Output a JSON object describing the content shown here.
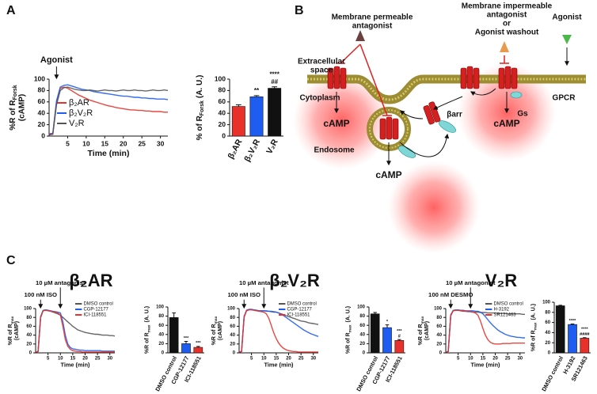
{
  "panel_labels": [
    "A",
    "B",
    "C"
  ],
  "diagram": {
    "permeable_antagonist": [
      "Membrane permeable",
      "antagonist"
    ],
    "impermeable_antagonist": [
      "Membrane impermeable",
      "antagonist",
      "or",
      "Agonist washout"
    ],
    "agonist": "Agonist",
    "extracellular": [
      "Extracellular",
      "space"
    ],
    "cytoplasm": "Cytoplasm",
    "endosome": "Endosome",
    "gpcr": "GPCR",
    "gs": "Gs",
    "barr": "βarr",
    "camp": [
      "cAMP",
      "cAMP",
      "cAMP"
    ]
  },
  "chart_data": [
    {
      "type": "line",
      "x": [
        0,
        1,
        2,
        3,
        4,
        5,
        6,
        7,
        8,
        9,
        10,
        11,
        12,
        13,
        14,
        15,
        16,
        17,
        18,
        19,
        20,
        21,
        22,
        23,
        24,
        25,
        26,
        27,
        28,
        29,
        30,
        31,
        32
      ],
      "series": [
        {
          "name": "β₂AR",
          "color": "#e8312a",
          "values": [
            4,
            5,
            60,
            84,
            86,
            84,
            80,
            76,
            72,
            69,
            66,
            63,
            61,
            59,
            57,
            55,
            53,
            52,
            50,
            49,
            48,
            47,
            46,
            46,
            45,
            45,
            44,
            44,
            43,
            43,
            43,
            42,
            42
          ]
        },
        {
          "name": "β₂V₂R",
          "color": "#1f5cf0",
          "values": [
            3,
            4,
            62,
            86,
            89,
            90,
            88,
            86,
            84,
            82,
            81,
            80,
            78,
            77,
            76,
            75,
            74,
            73,
            72,
            71,
            70,
            70,
            69,
            68,
            68,
            67,
            67,
            66,
            66,
            65,
            65,
            65,
            64
          ]
        },
        {
          "name": "V₂R",
          "color": "#555555",
          "values": [
            2,
            3,
            55,
            80,
            85,
            86,
            84,
            82,
            81,
            80,
            80,
            81,
            80,
            79,
            80,
            81,
            80,
            80,
            79,
            80,
            81,
            80,
            80,
            81,
            80,
            80,
            79,
            80,
            81,
            80,
            80,
            81,
            80
          ]
        }
      ],
      "xlim": [
        0,
        32
      ],
      "xticks": [
        5,
        10,
        15,
        20,
        25,
        30
      ],
      "ylim": [
        0,
        100
      ],
      "yticks": [
        0,
        20,
        40,
        60,
        80,
        100
      ],
      "x_label": "Time (min)",
      "y_label": {
        "text": "%R of R",
        "sub": "Forsk",
        "line2": "(cAMP)"
      },
      "annotations": [
        {
          "text": "Agonist",
          "x": 2
        }
      ],
      "legend": "lower-left"
    },
    {
      "type": "bar",
      "categories": [
        "β₂AR",
        "β₂V₂R",
        "V₂R"
      ],
      "values": [
        52,
        69,
        84
      ],
      "errors": [
        3,
        2,
        2.5
      ],
      "colors": [
        "#e8312a",
        "#1f5cf0",
        "#111111"
      ],
      "sig": [
        [],
        [
          "**"
        ],
        [
          "****",
          "##"
        ]
      ],
      "ylim": [
        0,
        100
      ],
      "yticks": [
        0,
        20,
        40,
        60,
        80,
        100
      ],
      "y_label": {
        "text": "% of R",
        "sub": "Forsk",
        "line2": "(A. U.)"
      }
    },
    {
      "type": "line",
      "title": "β₂AR",
      "x": [
        0,
        1,
        2,
        3,
        4,
        5,
        6,
        7,
        8,
        9,
        10,
        11,
        12,
        13,
        14,
        15,
        16,
        17,
        18,
        19,
        20,
        21,
        22,
        23,
        24,
        25,
        26,
        27,
        28,
        29,
        30,
        31,
        32
      ],
      "series": [
        {
          "name": "DMSO control",
          "color": "#555555",
          "values": [
            2,
            3,
            80,
            95,
            97,
            96,
            94,
            92,
            90,
            88,
            85,
            80,
            75,
            70,
            65,
            60,
            56,
            52,
            50,
            48,
            46,
            45,
            44,
            43,
            42,
            42,
            41,
            40,
            40,
            40,
            39,
            39,
            38
          ]
        },
        {
          "name": "CGP-12177",
          "color": "#1f5cf0",
          "values": [
            2,
            3,
            82,
            96,
            97,
            96,
            95,
            94,
            93,
            92,
            90,
            70,
            40,
            20,
            12,
            9,
            8,
            7,
            6,
            6,
            5,
            5,
            5,
            5,
            5,
            5,
            5,
            4,
            4,
            4,
            4,
            4,
            4
          ]
        },
        {
          "name": "ICI-118551",
          "color": "#e8312a",
          "values": [
            2,
            3,
            80,
            95,
            96,
            95,
            94,
            93,
            92,
            90,
            85,
            60,
            30,
            15,
            8,
            5,
            4,
            3,
            3,
            2,
            2,
            2,
            2,
            2,
            2,
            2,
            2,
            2,
            2,
            2,
            2,
            2,
            2
          ]
        }
      ],
      "xlim": [
        0,
        32
      ],
      "xticks": [
        5,
        10,
        15,
        20,
        25,
        30
      ],
      "ylim": [
        0,
        100
      ],
      "yticks": [
        0,
        20,
        40,
        60,
        80,
        100
      ],
      "x_label": "Time (min)",
      "y_label": {
        "text": "%R of R",
        "sub": "max",
        "line2": "(cAMP)"
      },
      "annotations": [
        {
          "text": "100 nM ISO",
          "x": 2
        },
        {
          "text": "10 µM antagonist",
          "x": 10
        }
      ],
      "legend": "upper-right"
    },
    {
      "type": "bar",
      "categories": [
        "DMSO control",
        "CGP-12177",
        "ICI-118551"
      ],
      "values": [
        77,
        20,
        12
      ],
      "errors": [
        10,
        5,
        2
      ],
      "colors": [
        "#111111",
        "#1f5cf0",
        "#e8312a"
      ],
      "sig": [
        [],
        [
          "***"
        ],
        [
          "***"
        ]
      ],
      "ylim": [
        0,
        100
      ],
      "yticks": [
        0,
        20,
        40,
        60,
        80,
        100
      ],
      "y_label": {
        "text": "%R of R",
        "sub": "max",
        "line2": "(A. U.)"
      }
    },
    {
      "type": "line",
      "title": "β₂V₂R",
      "x": [
        0,
        1,
        2,
        3,
        4,
        5,
        6,
        7,
        8,
        9,
        10,
        11,
        12,
        13,
        14,
        15,
        16,
        17,
        18,
        19,
        20,
        21,
        22,
        23,
        24,
        25,
        26,
        27,
        28,
        29,
        30,
        31,
        32
      ],
      "series": [
        {
          "name": "DMSO control",
          "color": "#555555",
          "values": [
            2,
            3,
            82,
            96,
            98,
            98,
            97,
            96,
            95,
            95,
            95,
            94,
            94,
            93,
            92,
            92,
            90,
            88,
            86,
            84,
            82,
            80,
            78,
            76,
            74,
            72,
            71,
            70,
            68,
            67,
            66,
            65,
            64
          ]
        },
        {
          "name": "CGP-12177",
          "color": "#1f5cf0",
          "values": [
            2,
            3,
            82,
            96,
            98,
            98,
            97,
            96,
            95,
            95,
            95,
            95,
            94,
            94,
            93,
            92,
            90,
            87,
            84,
            80,
            76,
            72,
            68,
            64,
            60,
            56,
            52,
            49,
            46,
            43,
            41,
            39,
            37
          ]
        },
        {
          "name": "ICI-118551",
          "color": "#e8312a",
          "values": [
            2,
            3,
            80,
            95,
            97,
            97,
            96,
            95,
            94,
            93,
            92,
            88,
            78,
            62,
            45,
            32,
            22,
            15,
            10,
            7,
            5,
            4,
            3,
            3,
            2,
            2,
            2,
            2,
            2,
            2,
            2,
            2,
            2
          ]
        }
      ],
      "xlim": [
        0,
        32
      ],
      "xticks": [
        5,
        10,
        15,
        20,
        25,
        30
      ],
      "ylim": [
        0,
        100
      ],
      "yticks": [
        0,
        20,
        40,
        60,
        80,
        100
      ],
      "x_label": "Time (min)",
      "y_label": {
        "text": "%R of R",
        "sub": "max",
        "line2": "(cAMP)"
      },
      "annotations": [
        {
          "text": "100 nM ISO",
          "x": 2
        },
        {
          "text": "10 µM antagonist",
          "x": 10
        }
      ],
      "legend": "upper-right"
    },
    {
      "type": "bar",
      "categories": [
        "DMSO control",
        "CGP-12177",
        "ICI-118551"
      ],
      "values": [
        85,
        55,
        27
      ],
      "errors": [
        3,
        6,
        2
      ],
      "colors": [
        "#111111",
        "#1f5cf0",
        "#e8312a"
      ],
      "sig": [
        [],
        [
          "*"
        ],
        [
          "***",
          "#"
        ]
      ],
      "ylim": [
        0,
        100
      ],
      "yticks": [
        0,
        20,
        40,
        60,
        80,
        100
      ],
      "y_label": {
        "text": "%R of R",
        "sub": "max",
        "line2": "(A. U.)"
      }
    },
    {
      "type": "line",
      "title": "V₂R",
      "x": [
        0,
        1,
        2,
        3,
        4,
        5,
        6,
        7,
        8,
        9,
        10,
        11,
        12,
        13,
        14,
        15,
        16,
        17,
        18,
        19,
        20,
        21,
        22,
        23,
        24,
        25,
        26,
        27,
        28,
        29,
        30,
        31,
        32
      ],
      "series": [
        {
          "name": "DMSO control",
          "color": "#555555",
          "values": [
            2,
            3,
            85,
            95,
            96,
            96,
            95,
            94,
            94,
            93,
            93,
            92,
            92,
            92,
            91,
            91,
            91,
            90,
            90,
            90,
            90,
            89,
            89,
            89,
            89,
            88,
            88,
            88,
            88,
            88,
            88,
            87,
            87
          ]
        },
        {
          "name": "H-3192",
          "color": "#1f5cf0",
          "values": [
            2,
            3,
            86,
            96,
            97,
            97,
            96,
            96,
            95,
            95,
            95,
            95,
            94,
            94,
            92,
            88,
            82,
            75,
            68,
            62,
            57,
            52,
            48,
            45,
            42,
            40,
            38,
            37,
            36,
            35,
            35,
            34,
            34
          ]
        },
        {
          "name": "SR121463",
          "color": "#e8312a",
          "values": [
            2,
            3,
            84,
            95,
            96,
            96,
            95,
            95,
            94,
            94,
            93,
            92,
            90,
            85,
            72,
            55,
            40,
            30,
            24,
            21,
            20,
            20,
            20,
            21,
            21,
            21,
            21,
            22,
            22,
            22,
            22,
            22,
            22
          ]
        }
      ],
      "xlim": [
        0,
        32
      ],
      "xticks": [
        5,
        10,
        15,
        20,
        25,
        30
      ],
      "ylim": [
        0,
        100
      ],
      "yticks": [
        0,
        20,
        40,
        60,
        80,
        100
      ],
      "x_label": "Time (min)",
      "y_label": {
        "text": "%R of R",
        "sub": "max",
        "line2": "(cAMP)"
      },
      "annotations": [
        {
          "text": "100 nM DESMO",
          "x": 2
        },
        {
          "text": "10 µM antagonist",
          "x": 10
        }
      ],
      "legend": "upper-right"
    },
    {
      "type": "bar",
      "categories": [
        "DMSO control",
        "H-3192",
        "SR121463"
      ],
      "values": [
        93,
        56,
        29
      ],
      "errors": [
        1,
        1,
        1
      ],
      "colors": [
        "#111111",
        "#1f5cf0",
        "#e8312a"
      ],
      "sig": [
        [],
        [
          "****"
        ],
        [
          "****",
          "####"
        ]
      ],
      "ylim": [
        0,
        100
      ],
      "yticks": [
        0,
        20,
        40,
        60,
        80,
        100
      ],
      "y_label": {
        "text": "%R of R",
        "sub": "max",
        "line2": "(A. U.)"
      }
    }
  ]
}
